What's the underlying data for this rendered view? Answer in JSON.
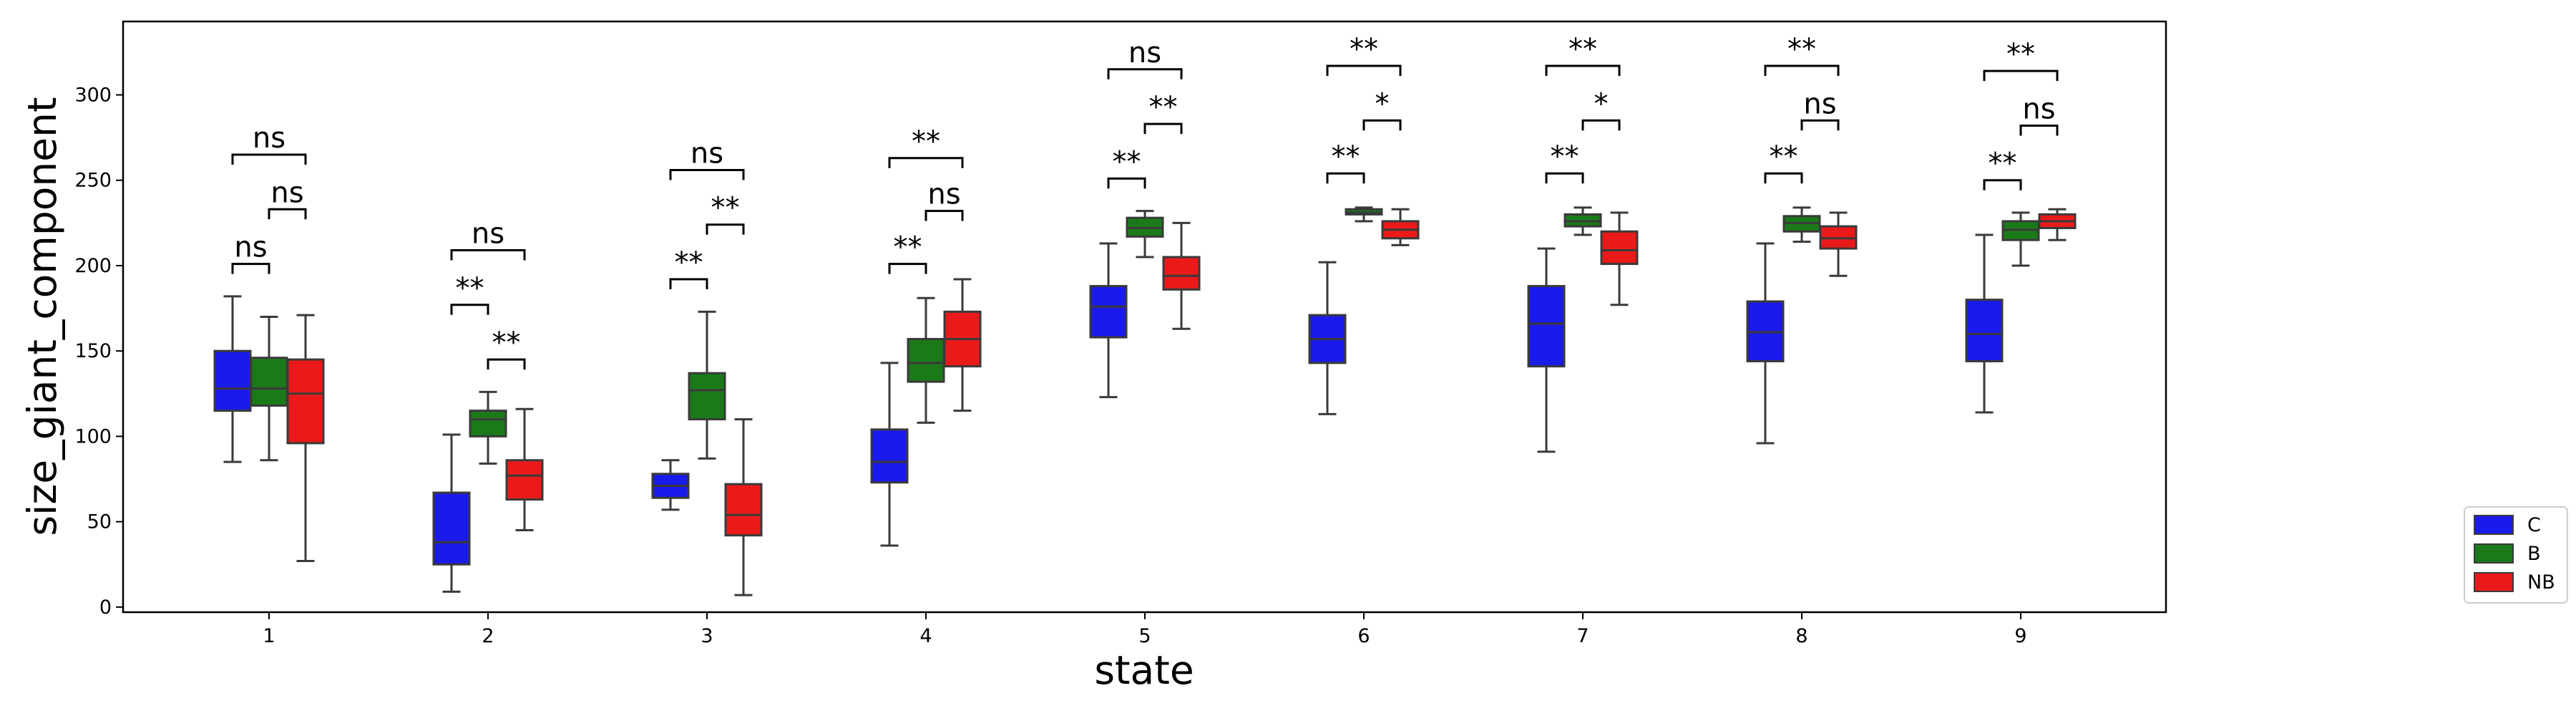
{
  "chart_data": {
    "type": "boxplot",
    "title": "",
    "xlabel": "state",
    "ylabel": "size_giant_component",
    "ylim": [
      -3,
      343
    ],
    "yticks": [
      0,
      50,
      100,
      150,
      200,
      250,
      300
    ],
    "categories": [
      "1",
      "2",
      "3",
      "4",
      "5",
      "6",
      "7",
      "8",
      "9"
    ],
    "grid": false,
    "legend_position": "outside-right-bottom",
    "series": [
      {
        "name": "C",
        "color": "#1a1aeb",
        "boxes": [
          {
            "whislo": 85,
            "q1": 115,
            "med": 128,
            "q3": 150,
            "whishi": 182
          },
          {
            "whislo": 9,
            "q1": 25,
            "med": 38,
            "q3": 67,
            "whishi": 101
          },
          {
            "whislo": 57,
            "q1": 64,
            "med": 71,
            "q3": 78,
            "whishi": 86
          },
          {
            "whislo": 36,
            "q1": 73,
            "med": 85,
            "q3": 104,
            "whishi": 143
          },
          {
            "whislo": 123,
            "q1": 158,
            "med": 176,
            "q3": 188,
            "whishi": 213
          },
          {
            "whislo": 113,
            "q1": 143,
            "med": 157,
            "q3": 171,
            "whishi": 202
          },
          {
            "whislo": 91,
            "q1": 141,
            "med": 166,
            "q3": 188,
            "whishi": 210
          },
          {
            "whislo": 96,
            "q1": 144,
            "med": 161,
            "q3": 179,
            "whishi": 213
          },
          {
            "whislo": 114,
            "q1": 144,
            "med": 160,
            "q3": 180,
            "whishi": 218
          }
        ]
      },
      {
        "name": "B",
        "color": "#1a7a1a",
        "boxes": [
          {
            "whislo": 86,
            "q1": 118,
            "med": 128,
            "q3": 146,
            "whishi": 170
          },
          {
            "whislo": 84,
            "q1": 100,
            "med": 110,
            "q3": 115,
            "whishi": 126
          },
          {
            "whislo": 87,
            "q1": 110,
            "med": 127,
            "q3": 137,
            "whishi": 173
          },
          {
            "whislo": 108,
            "q1": 132,
            "med": 143,
            "q3": 157,
            "whishi": 181
          },
          {
            "whislo": 205,
            "q1": 217,
            "med": 222,
            "q3": 228,
            "whishi": 232
          },
          {
            "whislo": 226,
            "q1": 230,
            "med": 231,
            "q3": 233,
            "whishi": 234
          },
          {
            "whislo": 218,
            "q1": 223,
            "med": 226,
            "q3": 230,
            "whishi": 234
          },
          {
            "whislo": 214,
            "q1": 220,
            "med": 225,
            "q3": 229,
            "whishi": 234
          },
          {
            "whislo": 200,
            "q1": 215,
            "med": 221,
            "q3": 226,
            "whishi": 231
          }
        ]
      },
      {
        "name": "NB",
        "color": "#eb1a1a",
        "boxes": [
          {
            "whislo": 27,
            "q1": 96,
            "med": 125,
            "q3": 145,
            "whishi": 171
          },
          {
            "whislo": 45,
            "q1": 63,
            "med": 77,
            "q3": 86,
            "whishi": 116
          },
          {
            "whislo": 7,
            "q1": 42,
            "med": 54,
            "q3": 72,
            "whishi": 110
          },
          {
            "whislo": 115,
            "q1": 141,
            "med": 157,
            "q3": 173,
            "whishi": 192
          },
          {
            "whislo": 163,
            "q1": 186,
            "med": 194,
            "q3": 205,
            "whishi": 225
          },
          {
            "whislo": 212,
            "q1": 216,
            "med": 221,
            "q3": 226,
            "whishi": 233
          },
          {
            "whislo": 177,
            "q1": 201,
            "med": 209,
            "q3": 220,
            "whishi": 231
          },
          {
            "whislo": 194,
            "q1": 210,
            "med": 216,
            "q3": 223,
            "whishi": 231
          },
          {
            "whislo": 215,
            "q1": 222,
            "med": 226,
            "q3": 230,
            "whishi": 233
          }
        ]
      }
    ],
    "annotations": [
      {
        "category": "1",
        "pair": [
          "C",
          "B"
        ],
        "label": "ns",
        "y": 201
      },
      {
        "category": "1",
        "pair": [
          "B",
          "NB"
        ],
        "label": "ns",
        "y": 233
      },
      {
        "category": "1",
        "pair": [
          "C",
          "NB"
        ],
        "label": "ns",
        "y": 265
      },
      {
        "category": "2",
        "pair": [
          "C",
          "B"
        ],
        "label": "**",
        "y": 177
      },
      {
        "category": "2",
        "pair": [
          "B",
          "NB"
        ],
        "label": "**",
        "y": 145
      },
      {
        "category": "2",
        "pair": [
          "C",
          "NB"
        ],
        "label": "ns",
        "y": 209
      },
      {
        "category": "3",
        "pair": [
          "C",
          "B"
        ],
        "label": "**",
        "y": 192
      },
      {
        "category": "3",
        "pair": [
          "B",
          "NB"
        ],
        "label": "**",
        "y": 224
      },
      {
        "category": "3",
        "pair": [
          "C",
          "NB"
        ],
        "label": "ns",
        "y": 256
      },
      {
        "category": "4",
        "pair": [
          "C",
          "B"
        ],
        "label": "**",
        "y": 201
      },
      {
        "category": "4",
        "pair": [
          "B",
          "NB"
        ],
        "label": "ns",
        "y": 232
      },
      {
        "category": "4",
        "pair": [
          "C",
          "NB"
        ],
        "label": "**",
        "y": 263
      },
      {
        "category": "5",
        "pair": [
          "C",
          "B"
        ],
        "label": "**",
        "y": 251
      },
      {
        "category": "5",
        "pair": [
          "B",
          "NB"
        ],
        "label": "**",
        "y": 283
      },
      {
        "category": "5",
        "pair": [
          "C",
          "NB"
        ],
        "label": "ns",
        "y": 315
      },
      {
        "category": "6",
        "pair": [
          "C",
          "B"
        ],
        "label": "**",
        "y": 254
      },
      {
        "category": "6",
        "pair": [
          "B",
          "NB"
        ],
        "label": "*",
        "y": 285
      },
      {
        "category": "6",
        "pair": [
          "C",
          "NB"
        ],
        "label": "**",
        "y": 317
      },
      {
        "category": "7",
        "pair": [
          "C",
          "B"
        ],
        "label": "**",
        "y": 254
      },
      {
        "category": "7",
        "pair": [
          "B",
          "NB"
        ],
        "label": "*",
        "y": 285
      },
      {
        "category": "7",
        "pair": [
          "C",
          "NB"
        ],
        "label": "**",
        "y": 317
      },
      {
        "category": "8",
        "pair": [
          "C",
          "B"
        ],
        "label": "**",
        "y": 254
      },
      {
        "category": "8",
        "pair": [
          "B",
          "NB"
        ],
        "label": "ns",
        "y": 285
      },
      {
        "category": "8",
        "pair": [
          "C",
          "NB"
        ],
        "label": "**",
        "y": 317
      },
      {
        "category": "9",
        "pair": [
          "C",
          "B"
        ],
        "label": "**",
        "y": 250
      },
      {
        "category": "9",
        "pair": [
          "B",
          "NB"
        ],
        "label": "ns",
        "y": 282
      },
      {
        "category": "9",
        "pair": [
          "C",
          "NB"
        ],
        "label": "**",
        "y": 314
      }
    ]
  }
}
